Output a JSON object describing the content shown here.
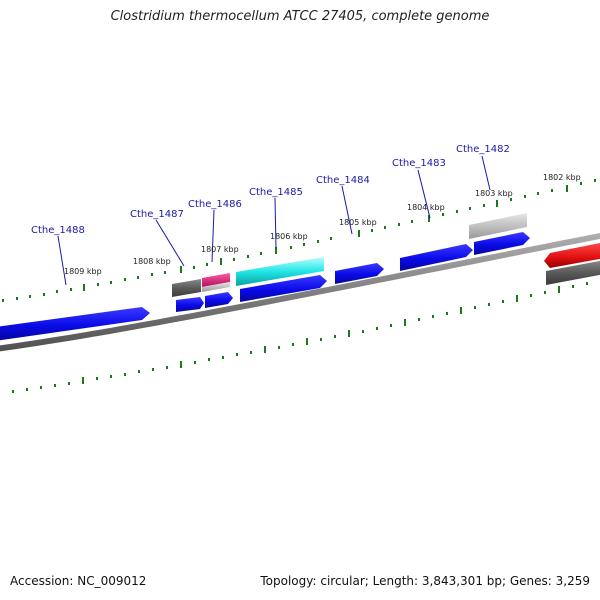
{
  "title": "Clostridium thermocellum ATCC 27405, complete genome",
  "footer": {
    "accession": "Accession: NC_009012",
    "stats": "Topology: circular; Length: 3,843,301 bp; Genes: 3,259"
  },
  "scale_labels": [
    "1809 kbp",
    "1808 kbp",
    "1807 kbp",
    "1806 kbp",
    "1805 kbp",
    "1804 kbp",
    "1803 kbp",
    "1802 kbp"
  ],
  "gene_labels": [
    "Cthe_1488",
    "Cthe_1487",
    "Cthe_1486",
    "Cthe_1485",
    "Cthe_1484",
    "Cthe_1483",
    "Cthe_1482"
  ],
  "colors": {
    "cds": "#1010e0",
    "backbone": "#7a7a7a",
    "tick": "#1a7a1a",
    "gene_label": "#1a1aa6",
    "feature_cyan": "#22e6e6",
    "feature_pink": "#e0207a",
    "feature_red": "#e01010",
    "feature_dark": "#5a5a5a",
    "feature_light": "#c8c8c8"
  }
}
